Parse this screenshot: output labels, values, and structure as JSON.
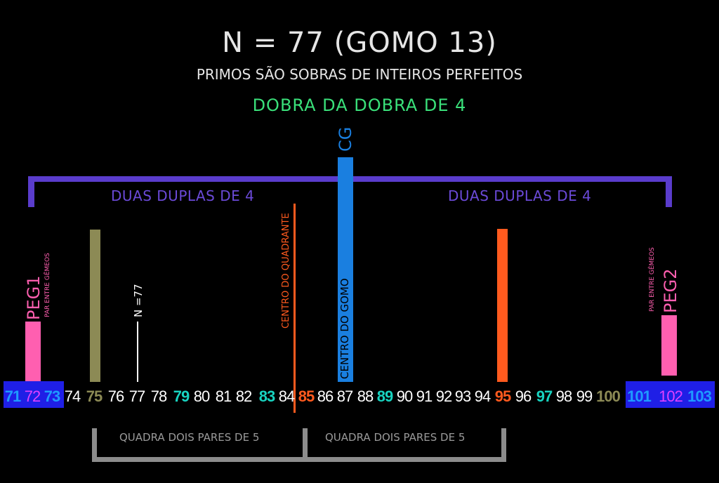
{
  "title": "N = 77 (GOMO 13)",
  "subtitle": "PRIMOS SÃO SOBRAS DE INTEIROS PERFEITOS",
  "subtitle2": "DOBRA DA DOBRA DE 4",
  "cg_label": "CG",
  "centro_gomo": "CENTRO DO GOMO",
  "centro_quadrante": "CENTRO DO QUADRANTE",
  "duas_duplas_left": "DUAS DUPLAS DE 4",
  "duas_duplas_right": "DUAS DUPLAS DE 4",
  "peg1": "PEG1",
  "peg2": "PEG2",
  "par_gemeos_left": "PAR ENTRE GÊMEOS",
  "par_gemeos_right": "PAR ENTRE GÊMEOS",
  "n77_label": "N =77",
  "quadra_left": "QUADRA DOIS PARES DE 5",
  "quadra_right": "QUADRA DOIS PARES DE 5",
  "colors": {
    "blue_prime": "#1e9bff",
    "teal_prime": "#18d3c0",
    "olive": "#8c8a55",
    "orange": "#ff5a1e",
    "pink": "#ff5fb0",
    "purple": "#5a3ccc",
    "green": "#3ae07a",
    "cg_blue": "#1a7fe0"
  },
  "numbers": [
    {
      "n": "71",
      "color": "#1e9bff",
      "bold": true,
      "boxed": true
    },
    {
      "n": "72",
      "color": "#e040ff",
      "bold": false,
      "boxed": true
    },
    {
      "n": "73",
      "color": "#1e9bff",
      "bold": true,
      "boxed": true
    },
    {
      "n": "74",
      "color": "#ffffff",
      "bold": false
    },
    {
      "n": "75",
      "color": "#8c8a55",
      "bold": true
    },
    {
      "n": "76",
      "color": "#ffffff",
      "bold": false
    },
    {
      "n": "77",
      "color": "#ffffff",
      "bold": false
    },
    {
      "n": "78",
      "color": "#ffffff",
      "bold": false
    },
    {
      "n": "79",
      "color": "#18d3c0",
      "bold": true
    },
    {
      "n": "80",
      "color": "#ffffff",
      "bold": false
    },
    {
      "n": "81",
      "color": "#ffffff",
      "bold": false
    },
    {
      "n": "82",
      "color": "#ffffff",
      "bold": false
    },
    {
      "n": "83",
      "color": "#18d3c0",
      "bold": true
    },
    {
      "n": "84",
      "color": "#ffffff",
      "bold": false
    },
    {
      "n": "85",
      "color": "#ff5a1e",
      "bold": true
    },
    {
      "n": "86",
      "color": "#ffffff",
      "bold": false
    },
    {
      "n": "87",
      "color": "#ffffff",
      "bold": false
    },
    {
      "n": "88",
      "color": "#ffffff",
      "bold": false
    },
    {
      "n": "89",
      "color": "#18d3c0",
      "bold": true
    },
    {
      "n": "90",
      "color": "#ffffff",
      "bold": false
    },
    {
      "n": "91",
      "color": "#ffffff",
      "bold": false
    },
    {
      "n": "92",
      "color": "#ffffff",
      "bold": false
    },
    {
      "n": "93",
      "color": "#ffffff",
      "bold": false
    },
    {
      "n": "94",
      "color": "#ffffff",
      "bold": false
    },
    {
      "n": "95",
      "color": "#ff5a1e",
      "bold": true
    },
    {
      "n": "96",
      "color": "#ffffff",
      "bold": false
    },
    {
      "n": "97",
      "color": "#18d3c0",
      "bold": true
    },
    {
      "n": "98",
      "color": "#ffffff",
      "bold": false
    },
    {
      "n": "99",
      "color": "#ffffff",
      "bold": false
    },
    {
      "n": "100",
      "color": "#8c8a55",
      "bold": true
    },
    {
      "n": "101",
      "color": "#1e9bff",
      "bold": true,
      "boxed": true
    },
    {
      "n": "102",
      "color": "#e040ff",
      "bold": false,
      "boxed": true
    },
    {
      "n": "103",
      "color": "#1e9bff",
      "bold": true,
      "boxed": true
    }
  ]
}
